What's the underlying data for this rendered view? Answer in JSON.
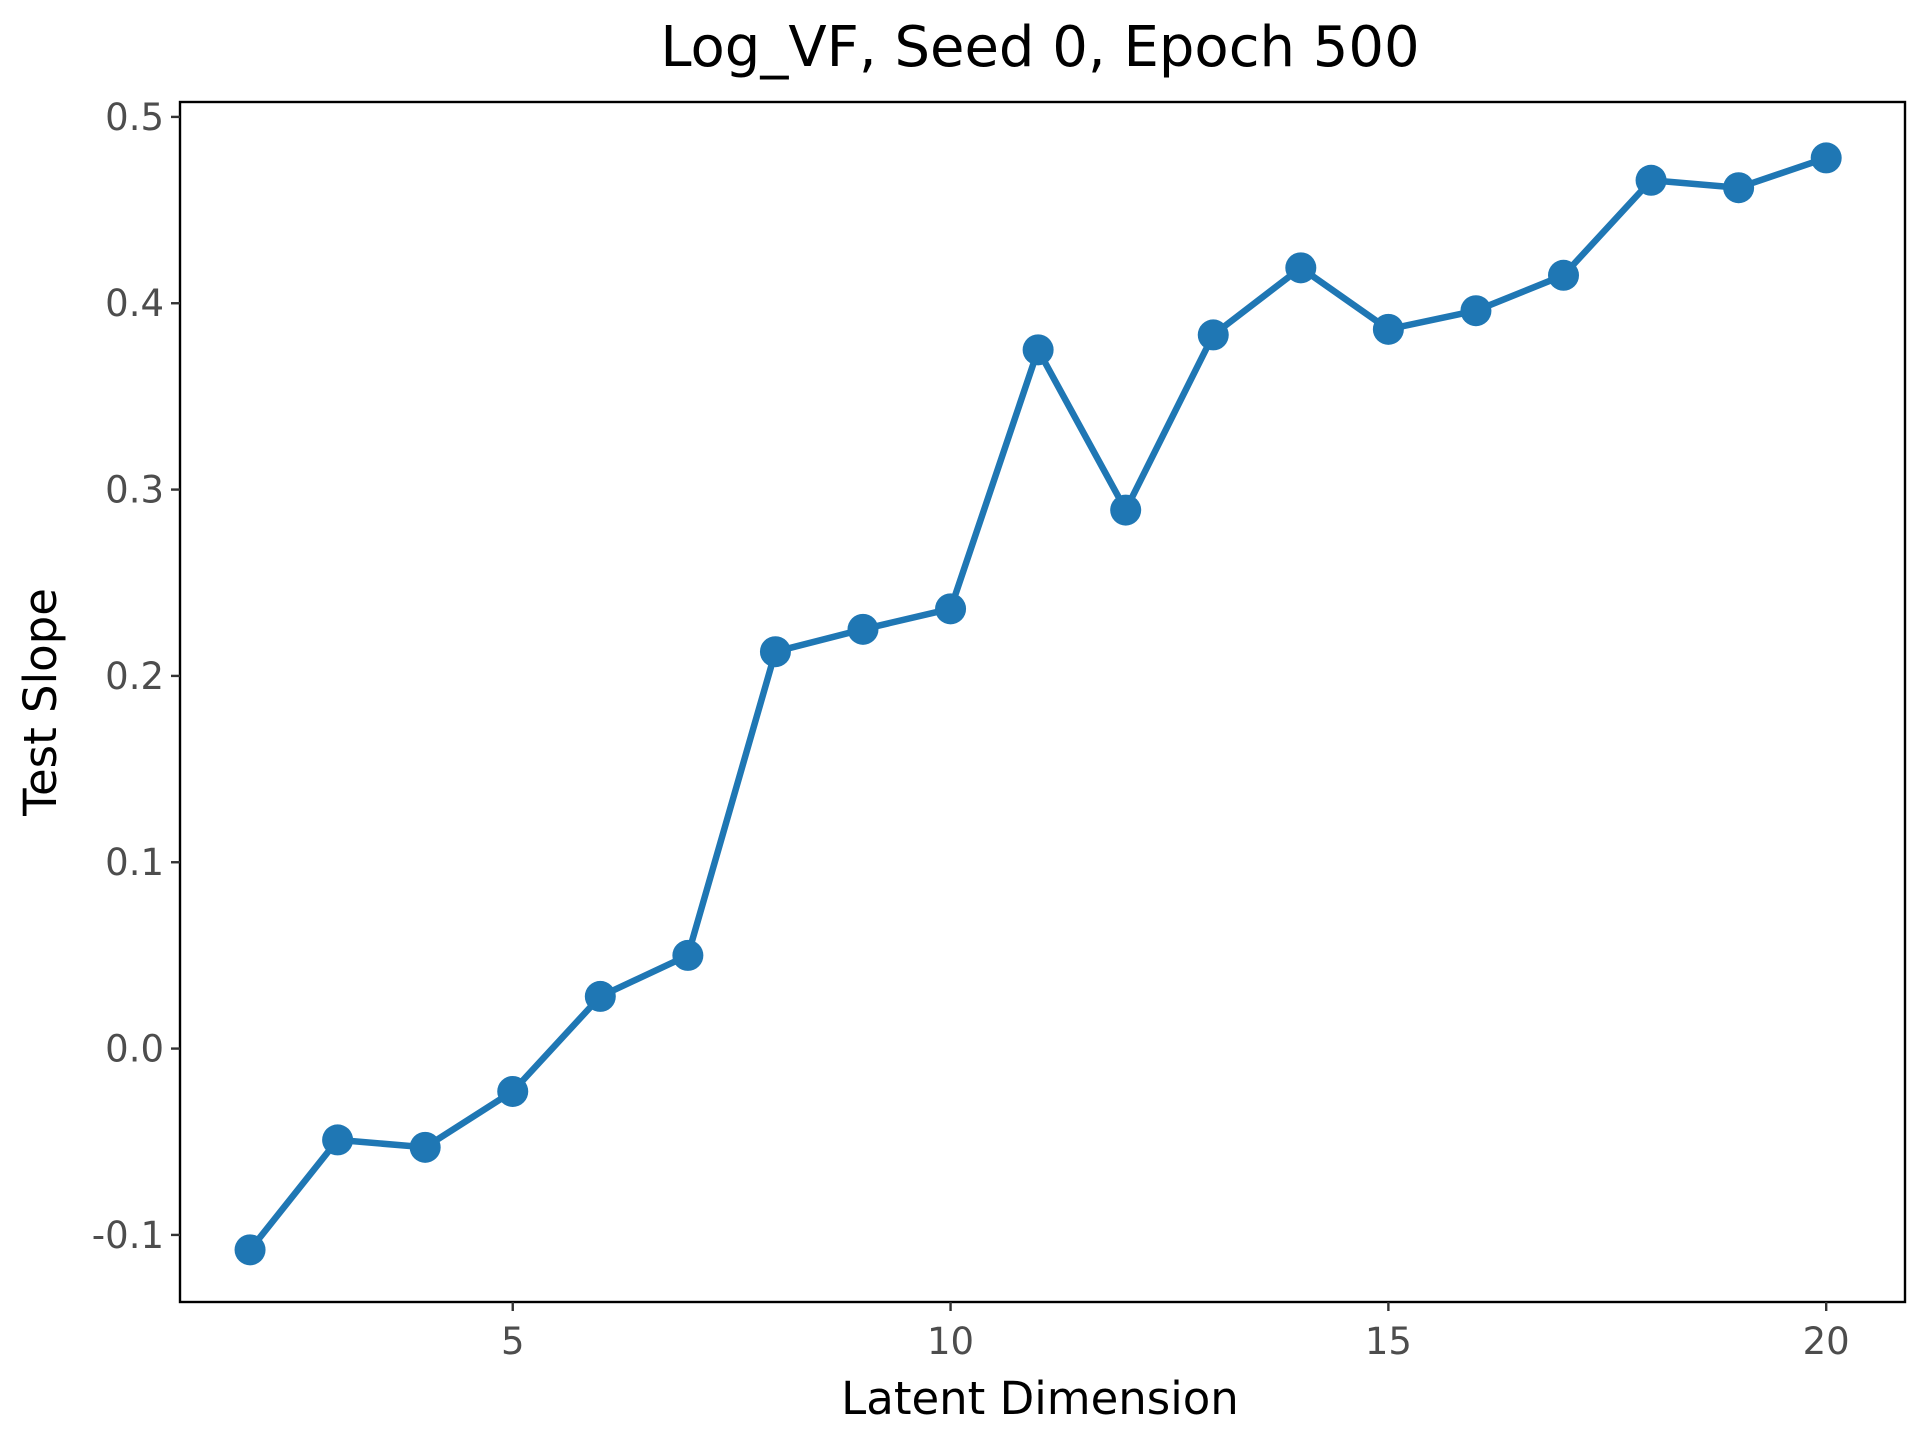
{
  "chart_data": {
    "type": "line",
    "title": "Log_VF, Seed 0, Epoch 500",
    "xlabel": "Latent Dimension",
    "ylabel": "Test Slope",
    "xlim": [
      1.2,
      20.9
    ],
    "ylim": [
      -0.136,
      0.508
    ],
    "xticks": [
      5,
      10,
      15,
      20
    ],
    "xtick_labels": [
      "5",
      "10",
      "15",
      "20"
    ],
    "yticks": [
      -0.1,
      0.0,
      0.1,
      0.2,
      0.3,
      0.4,
      0.5
    ],
    "ytick_labels": [
      "-0.1",
      "0.0",
      "0.1",
      "0.2",
      "0.3",
      "0.4",
      "0.5"
    ],
    "grid": false,
    "color": "#1f77b4",
    "series": [
      {
        "x": [
          2,
          3,
          4,
          5,
          6,
          7,
          8,
          9,
          10,
          11,
          12,
          13,
          14,
          15,
          16,
          17,
          18,
          19,
          20
        ],
        "y": [
          -0.108,
          -0.049,
          -0.053,
          -0.023,
          0.028,
          0.05,
          0.213,
          0.225,
          0.236,
          0.375,
          0.289,
          0.383,
          0.419,
          0.386,
          0.396,
          0.415,
          0.466,
          0.462,
          0.478
        ]
      }
    ]
  }
}
